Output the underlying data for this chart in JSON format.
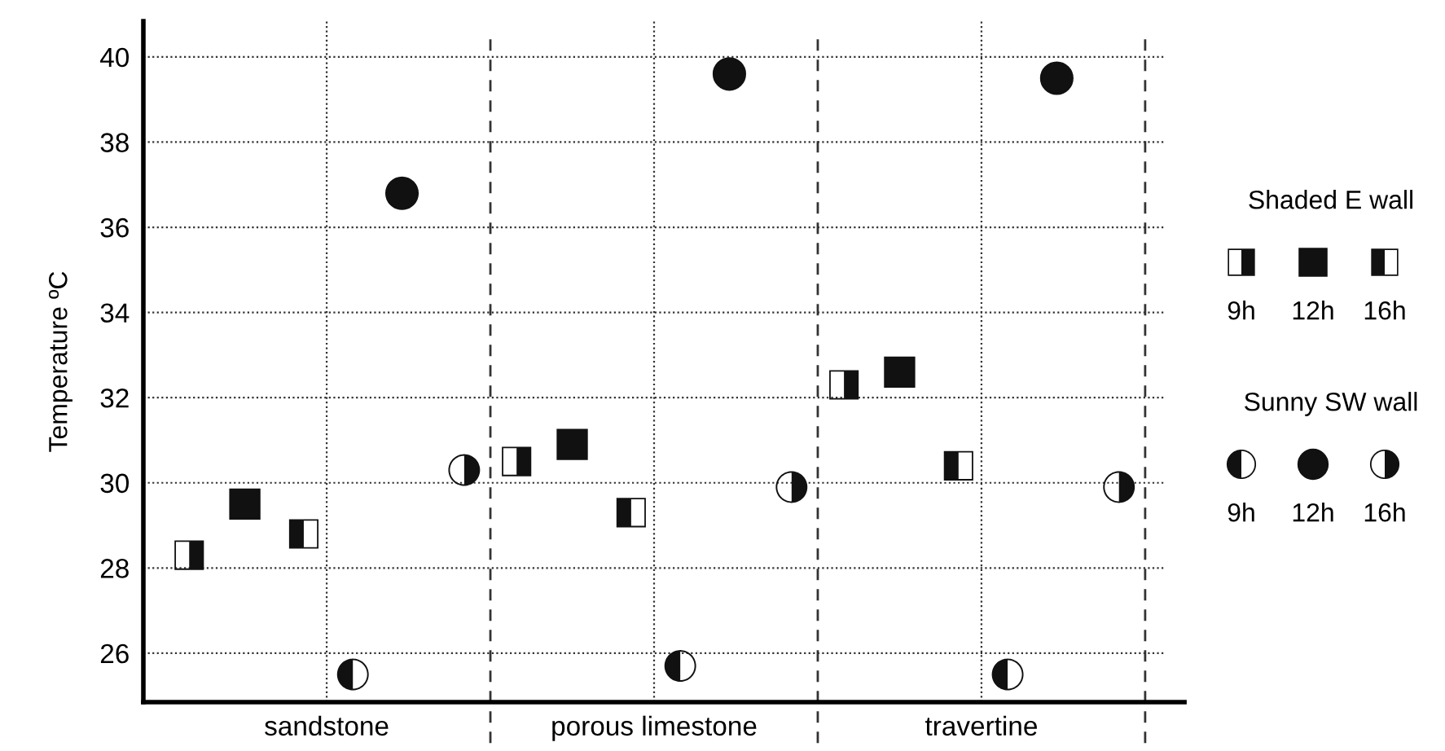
{
  "chart_data": {
    "type": "scatter",
    "ylabel": "Temperature ºC",
    "categories": [
      "sandstone",
      "porous limestone",
      "travertine"
    ],
    "legend_title": [
      "Shaded E wall",
      "Sunny SW wall"
    ],
    "series": [
      {
        "name": "9h",
        "marker": "square",
        "color": "#111111",
        "values": [
          28.3,
          30.5,
          32.3
        ]
      },
      {
        "name": "12h",
        "marker": "square",
        "color": "#111111",
        "values": [
          29.5,
          30.9,
          32.6
        ]
      },
      {
        "name": "16h",
        "marker": "square",
        "color": "#111111",
        "values": [
          28.8,
          29.3,
          30.4
        ]
      },
      {
        "name": "9h",
        "marker": "circle",
        "color": "#111111",
        "values": [
          25.5,
          25.7,
          25.5
        ]
      },
      {
        "name": "12h",
        "marker": "circle",
        "color": "#111111",
        "values": [
          36.8,
          39.6,
          39.5
        ]
      },
      {
        "name": "16h",
        "marker": "circle",
        "color": "#111111",
        "values": [
          30.3,
          29.9,
          29.9
        ]
      }
    ],
    "ylim": [
      24.85,
      40.84
    ],
    "yticks": [
      26,
      28,
      30,
      32,
      34,
      36,
      38,
      40
    ],
    "grid": true,
    "legend": "right"
  }
}
